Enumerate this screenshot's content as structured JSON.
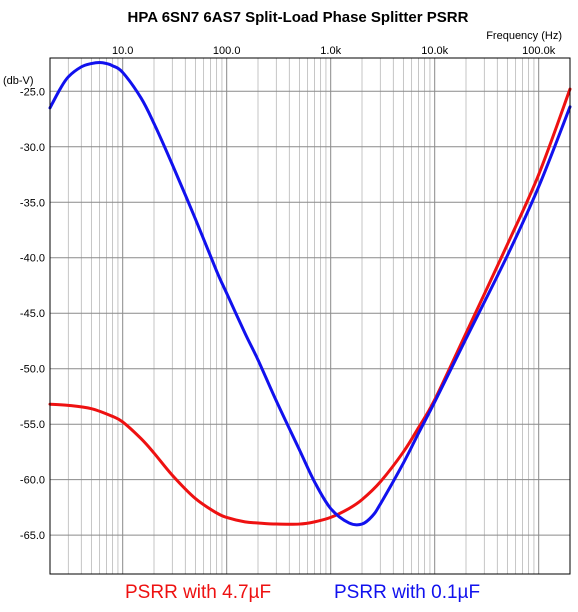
{
  "chart_data": {
    "type": "line",
    "title": "HPA 6SN7 6AS7 Split-Load Phase Splitter PSRR",
    "xlabel": "Frequency (Hz)",
    "ylabel": "(db-V)",
    "x_scale": "log",
    "xlim": [
      2,
      200000
    ],
    "ylim": [
      -68.5,
      -22
    ],
    "x_ticks": [
      {
        "value": 10,
        "label": "10.0"
      },
      {
        "value": 100,
        "label": "100.0"
      },
      {
        "value": 1000,
        "label": "1.0k"
      },
      {
        "value": 10000,
        "label": "10.0k"
      },
      {
        "value": 100000,
        "label": "100.0k"
      }
    ],
    "y_ticks": [
      {
        "value": -25,
        "label": "-25.0"
      },
      {
        "value": -30,
        "label": "-30.0"
      },
      {
        "value": -35,
        "label": "-35.0"
      },
      {
        "value": -40,
        "label": "-40.0"
      },
      {
        "value": -45,
        "label": "-45.0"
      },
      {
        "value": -50,
        "label": "-50.0"
      },
      {
        "value": -55,
        "label": "-55.0"
      },
      {
        "value": -60,
        "label": "-60.0"
      },
      {
        "value": -65,
        "label": "-65.0"
      }
    ],
    "grid": true,
    "legend_position": "bottom",
    "series": [
      {
        "name": "PSRR with 4.7µF",
        "color": "#ee1111",
        "points": [
          [
            2,
            -53.2
          ],
          [
            3,
            -53.3
          ],
          [
            5,
            -53.6
          ],
          [
            8,
            -54.3
          ],
          [
            10,
            -54.8
          ],
          [
            15,
            -56.3
          ],
          [
            20,
            -57.6
          ],
          [
            30,
            -59.6
          ],
          [
            50,
            -61.7
          ],
          [
            80,
            -63.0
          ],
          [
            100,
            -63.4
          ],
          [
            150,
            -63.8
          ],
          [
            200,
            -63.9
          ],
          [
            300,
            -64.0
          ],
          [
            500,
            -64.0
          ],
          [
            700,
            -63.8
          ],
          [
            1000,
            -63.4
          ],
          [
            1500,
            -62.6
          ],
          [
            2000,
            -61.8
          ],
          [
            3000,
            -60.2
          ],
          [
            5000,
            -57.5
          ],
          [
            7000,
            -55.3
          ],
          [
            10000,
            -52.8
          ],
          [
            20000,
            -46.8
          ],
          [
            50000,
            -38.8
          ],
          [
            100000,
            -32.5
          ],
          [
            200000,
            -24.8
          ]
        ]
      },
      {
        "name": "PSRR with 0.1µF",
        "color": "#1111ee",
        "points": [
          [
            2,
            -26.5
          ],
          [
            2.5,
            -24.8
          ],
          [
            3,
            -23.7
          ],
          [
            4,
            -22.8
          ],
          [
            5,
            -22.5
          ],
          [
            6,
            -22.4
          ],
          [
            7,
            -22.5
          ],
          [
            8,
            -22.7
          ],
          [
            10,
            -23.3
          ],
          [
            15,
            -25.6
          ],
          [
            20,
            -27.9
          ],
          [
            30,
            -31.6
          ],
          [
            50,
            -36.5
          ],
          [
            80,
            -41.2
          ],
          [
            100,
            -43.2
          ],
          [
            150,
            -46.8
          ],
          [
            200,
            -49.2
          ],
          [
            300,
            -52.9
          ],
          [
            500,
            -57.3
          ],
          [
            700,
            -60.2
          ],
          [
            1000,
            -62.6
          ],
          [
            1500,
            -63.9
          ],
          [
            2000,
            -64.0
          ],
          [
            2500,
            -63.3
          ],
          [
            3000,
            -62.2
          ],
          [
            5000,
            -58.5
          ],
          [
            7000,
            -55.8
          ],
          [
            10000,
            -53.0
          ],
          [
            20000,
            -47.3
          ],
          [
            50000,
            -39.8
          ],
          [
            100000,
            -33.6
          ],
          [
            200000,
            -26.4
          ]
        ]
      }
    ]
  }
}
